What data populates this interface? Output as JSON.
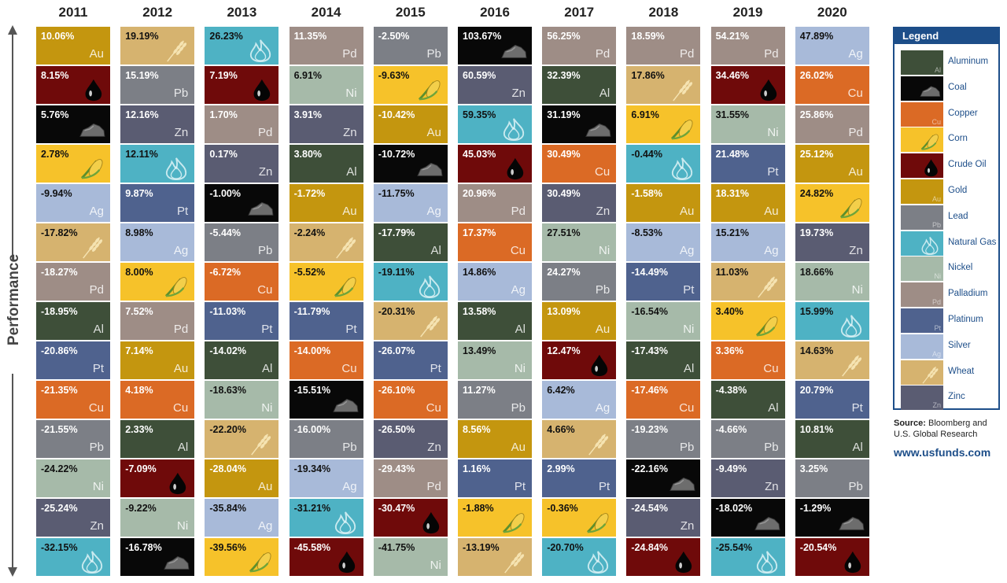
{
  "axis_label": "Performance",
  "legend": {
    "title": "Legend",
    "items": [
      {
        "code": "Al",
        "name": "Aluminum"
      },
      {
        "code": "Coal",
        "name": "Coal"
      },
      {
        "code": "Cu",
        "name": "Copper"
      },
      {
        "code": "Corn",
        "name": "Corn"
      },
      {
        "code": "Oil",
        "name": "Crude Oil"
      },
      {
        "code": "Au",
        "name": "Gold"
      },
      {
        "code": "Pb",
        "name": "Lead"
      },
      {
        "code": "Gas",
        "name": "Natural Gas"
      },
      {
        "code": "Ni",
        "name": "Nickel"
      },
      {
        "code": "Pd",
        "name": "Palladium"
      },
      {
        "code": "Pt",
        "name": "Platinum"
      },
      {
        "code": "Ag",
        "name": "Silver"
      },
      {
        "code": "Wheat",
        "name": "Wheat"
      },
      {
        "code": "Zn",
        "name": "Zinc"
      }
    ]
  },
  "source": {
    "label": "Source:",
    "text": "Bloomberg and U.S. Global Research"
  },
  "website": "www.usfunds.com",
  "colors": {
    "Al": "#3e4f39",
    "Coal": "#080808",
    "Cu": "#db6a25",
    "Corn": "#f6c22a",
    "Oil": "#6f0a0a",
    "Au": "#c4960f",
    "Pb": "#7c7f86",
    "Gas": "#4eb2c4",
    "Ni": "#a6baa9",
    "Pd": "#9e8d86",
    "Pt": "#4f628e",
    "Ag": "#a8bad9",
    "Wheat": "#d6b36f",
    "Zn": "#5a5c72",
    "legend_blue": "#1d4e89"
  },
  "chart_data": {
    "type": "table",
    "title": "",
    "ylabel": "Performance",
    "years": [
      "2011",
      "2012",
      "2013",
      "2014",
      "2015",
      "2016",
      "2017",
      "2018",
      "2019",
      "2020"
    ],
    "columns": [
      {
        "year": "2011",
        "cells": [
          {
            "c": "Au",
            "v": "10.06%"
          },
          {
            "c": "Oil",
            "v": "8.15%"
          },
          {
            "c": "Coal",
            "v": "5.76%"
          },
          {
            "c": "Corn",
            "v": "2.78%"
          },
          {
            "c": "Ag",
            "v": "-9.94%"
          },
          {
            "c": "Wheat",
            "v": "-17.82%"
          },
          {
            "c": "Pd",
            "v": "-18.27%"
          },
          {
            "c": "Al",
            "v": "-18.95%"
          },
          {
            "c": "Pt",
            "v": "-20.86%"
          },
          {
            "c": "Cu",
            "v": "-21.35%"
          },
          {
            "c": "Pb",
            "v": "-21.55%"
          },
          {
            "c": "Ni",
            "v": "-24.22%"
          },
          {
            "c": "Zn",
            "v": "-25.24%"
          },
          {
            "c": "Gas",
            "v": "-32.15%"
          }
        ]
      },
      {
        "year": "2012",
        "cells": [
          {
            "c": "Wheat",
            "v": "19.19%"
          },
          {
            "c": "Pb",
            "v": "15.19%"
          },
          {
            "c": "Zn",
            "v": "12.16%"
          },
          {
            "c": "Gas",
            "v": "12.11%"
          },
          {
            "c": "Pt",
            "v": "9.87%"
          },
          {
            "c": "Ag",
            "v": "8.98%"
          },
          {
            "c": "Corn",
            "v": "8.00%"
          },
          {
            "c": "Pd",
            "v": "7.52%"
          },
          {
            "c": "Au",
            "v": "7.14%"
          },
          {
            "c": "Cu",
            "v": "4.18%"
          },
          {
            "c": "Al",
            "v": "2.33%"
          },
          {
            "c": "Oil",
            "v": "-7.09%"
          },
          {
            "c": "Ni",
            "v": "-9.22%"
          },
          {
            "c": "Coal",
            "v": "-16.78%"
          }
        ]
      },
      {
        "year": "2013",
        "cells": [
          {
            "c": "Gas",
            "v": "26.23%"
          },
          {
            "c": "Oil",
            "v": "7.19%"
          },
          {
            "c": "Pd",
            "v": "1.70%"
          },
          {
            "c": "Zn",
            "v": "0.17%"
          },
          {
            "c": "Coal",
            "v": "-1.00%"
          },
          {
            "c": "Pb",
            "v": "-5.44%"
          },
          {
            "c": "Cu",
            "v": "-6.72%"
          },
          {
            "c": "Pt",
            "v": "-11.03%"
          },
          {
            "c": "Al",
            "v": "-14.02%"
          },
          {
            "c": "Ni",
            "v": "-18.63%"
          },
          {
            "c": "Wheat",
            "v": "-22.20%"
          },
          {
            "c": "Au",
            "v": "-28.04%"
          },
          {
            "c": "Ag",
            "v": "-35.84%"
          },
          {
            "c": "Corn",
            "v": "-39.56%"
          }
        ]
      },
      {
        "year": "2014",
        "cells": [
          {
            "c": "Pd",
            "v": "11.35%"
          },
          {
            "c": "Ni",
            "v": "6.91%"
          },
          {
            "c": "Zn",
            "v": "3.91%"
          },
          {
            "c": "Al",
            "v": "3.80%"
          },
          {
            "c": "Au",
            "v": "-1.72%"
          },
          {
            "c": "Wheat",
            "v": "-2.24%"
          },
          {
            "c": "Corn",
            "v": "-5.52%"
          },
          {
            "c": "Pt",
            "v": "-11.79%"
          },
          {
            "c": "Cu",
            "v": "-14.00%"
          },
          {
            "c": "Coal",
            "v": "-15.51%"
          },
          {
            "c": "Pb",
            "v": "-16.00%"
          },
          {
            "c": "Ag",
            "v": "-19.34%"
          },
          {
            "c": "Gas",
            "v": "-31.21%"
          },
          {
            "c": "Oil",
            "v": "-45.58%"
          }
        ]
      },
      {
        "year": "2015",
        "cells": [
          {
            "c": "Pb",
            "v": "-2.50%"
          },
          {
            "c": "Corn",
            "v": "-9.63%"
          },
          {
            "c": "Au",
            "v": "-10.42%"
          },
          {
            "c": "Coal",
            "v": "-10.72%"
          },
          {
            "c": "Ag",
            "v": "-11.75%"
          },
          {
            "c": "Al",
            "v": "-17.79%"
          },
          {
            "c": "Gas",
            "v": "-19.11%"
          },
          {
            "c": "Wheat",
            "v": "-20.31%"
          },
          {
            "c": "Pt",
            "v": "-26.07%"
          },
          {
            "c": "Cu",
            "v": "-26.10%"
          },
          {
            "c": "Zn",
            "v": "-26.50%"
          },
          {
            "c": "Pd",
            "v": "-29.43%"
          },
          {
            "c": "Oil",
            "v": "-30.47%"
          },
          {
            "c": "Ni",
            "v": "-41.75%"
          }
        ]
      },
      {
        "year": "2016",
        "cells": [
          {
            "c": "Coal",
            "v": "103.67%"
          },
          {
            "c": "Zn",
            "v": "60.59%"
          },
          {
            "c": "Gas",
            "v": "59.35%"
          },
          {
            "c": "Oil",
            "v": "45.03%"
          },
          {
            "c": "Pd",
            "v": "20.96%"
          },
          {
            "c": "Cu",
            "v": "17.37%"
          },
          {
            "c": "Ag",
            "v": "14.86%"
          },
          {
            "c": "Al",
            "v": "13.58%"
          },
          {
            "c": "Ni",
            "v": "13.49%"
          },
          {
            "c": "Pb",
            "v": "11.27%"
          },
          {
            "c": "Au",
            "v": "8.56%"
          },
          {
            "c": "Pt",
            "v": "1.16%"
          },
          {
            "c": "Corn",
            "v": "-1.88%"
          },
          {
            "c": "Wheat",
            "v": "-13.19%"
          }
        ]
      },
      {
        "year": "2017",
        "cells": [
          {
            "c": "Pd",
            "v": "56.25%"
          },
          {
            "c": "Al",
            "v": "32.39%"
          },
          {
            "c": "Coal",
            "v": "31.19%"
          },
          {
            "c": "Cu",
            "v": "30.49%"
          },
          {
            "c": "Zn",
            "v": "30.49%"
          },
          {
            "c": "Ni",
            "v": "27.51%"
          },
          {
            "c": "Pb",
            "v": "24.27%"
          },
          {
            "c": "Au",
            "v": "13.09%"
          },
          {
            "c": "Oil",
            "v": "12.47%"
          },
          {
            "c": "Ag",
            "v": "6.42%"
          },
          {
            "c": "Wheat",
            "v": "4.66%"
          },
          {
            "c": "Pt",
            "v": "2.99%"
          },
          {
            "c": "Corn",
            "v": "-0.36%"
          },
          {
            "c": "Gas",
            "v": "-20.70%"
          }
        ]
      },
      {
        "year": "2018",
        "cells": [
          {
            "c": "Pd",
            "v": "18.59%"
          },
          {
            "c": "Wheat",
            "v": "17.86%"
          },
          {
            "c": "Corn",
            "v": "6.91%"
          },
          {
            "c": "Gas",
            "v": "-0.44%"
          },
          {
            "c": "Au",
            "v": "-1.58%"
          },
          {
            "c": "Ag",
            "v": "-8.53%"
          },
          {
            "c": "Pt",
            "v": "-14.49%"
          },
          {
            "c": "Ni",
            "v": "-16.54%"
          },
          {
            "c": "Al",
            "v": "-17.43%"
          },
          {
            "c": "Cu",
            "v": "-17.46%"
          },
          {
            "c": "Pb",
            "v": "-19.23%"
          },
          {
            "c": "Coal",
            "v": "-22.16%"
          },
          {
            "c": "Zn",
            "v": "-24.54%"
          },
          {
            "c": "Oil",
            "v": "-24.84%"
          }
        ]
      },
      {
        "year": "2019",
        "cells": [
          {
            "c": "Pd",
            "v": "54.21%"
          },
          {
            "c": "Oil",
            "v": "34.46%"
          },
          {
            "c": "Ni",
            "v": "31.55%"
          },
          {
            "c": "Pt",
            "v": "21.48%"
          },
          {
            "c": "Au",
            "v": "18.31%"
          },
          {
            "c": "Ag",
            "v": "15.21%"
          },
          {
            "c": "Wheat",
            "v": "11.03%"
          },
          {
            "c": "Corn",
            "v": "3.40%"
          },
          {
            "c": "Cu",
            "v": "3.36%"
          },
          {
            "c": "Al",
            "v": "-4.38%"
          },
          {
            "c": "Pb",
            "v": "-4.66%"
          },
          {
            "c": "Zn",
            "v": "-9.49%"
          },
          {
            "c": "Coal",
            "v": "-18.02%"
          },
          {
            "c": "Gas",
            "v": "-25.54%"
          }
        ]
      },
      {
        "year": "2020",
        "cells": [
          {
            "c": "Ag",
            "v": "47.89%"
          },
          {
            "c": "Cu",
            "v": "26.02%"
          },
          {
            "c": "Pd",
            "v": "25.86%"
          },
          {
            "c": "Au",
            "v": "25.12%"
          },
          {
            "c": "Corn",
            "v": "24.82%"
          },
          {
            "c": "Zn",
            "v": "19.73%"
          },
          {
            "c": "Ni",
            "v": "18.66%"
          },
          {
            "c": "Gas",
            "v": "15.99%"
          },
          {
            "c": "Wheat",
            "v": "14.63%"
          },
          {
            "c": "Pt",
            "v": "20.79%"
          },
          {
            "c": "Al",
            "v": "10.81%"
          },
          {
            "c": "Pb",
            "v": "3.25%"
          },
          {
            "c": "Coal",
            "v": "-1.29%"
          },
          {
            "c": "Oil",
            "v": "-20.54%"
          }
        ]
      }
    ]
  }
}
